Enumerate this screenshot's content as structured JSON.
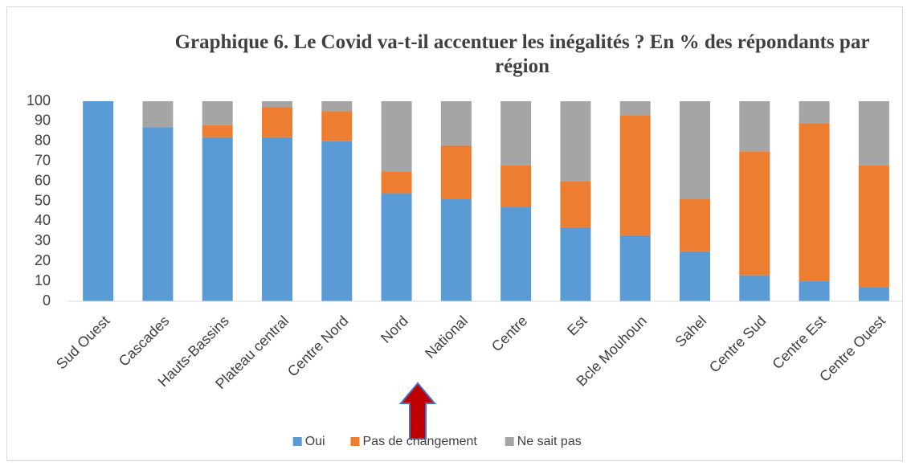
{
  "chart_data": {
    "type": "stacked_bar",
    "title": "Graphique 6. Le Covid va-t-il accentuer les inégalités ? En % des répondants par région",
    "categories": [
      "Sud Ouest",
      "Cascades",
      "Hauts-Bassins",
      "Plateau central",
      "Centre Nord",
      "Nord",
      "National",
      "Centre",
      "Est",
      "Bcle Mouhoun",
      "Sahel",
      "Centre Sud",
      "Centre Est",
      "Centre Ouest"
    ],
    "series": [
      {
        "name": "Oui",
        "color": "#5b9bd5",
        "values": [
          100,
          87,
          82,
          82,
          80,
          54,
          51,
          47,
          37,
          33,
          25,
          13,
          10,
          7
        ]
      },
      {
        "name": "Pas de changement",
        "color": "#ed7d31",
        "values": [
          0,
          0,
          6,
          15,
          15,
          11,
          27,
          21,
          23,
          60,
          26,
          62,
          79,
          61
        ]
      },
      {
        "name": "Ne sait pas",
        "color": "#a5a5a5",
        "values": [
          0,
          13,
          12,
          3,
          5,
          35,
          22,
          32,
          40,
          7,
          49,
          25,
          11,
          32
        ]
      }
    ],
    "ylim": [
      0,
      100
    ],
    "yticks": [
      0,
      10,
      20,
      30,
      40,
      50,
      60,
      70,
      80,
      90,
      100
    ],
    "grid": false,
    "legend": "bottom"
  }
}
